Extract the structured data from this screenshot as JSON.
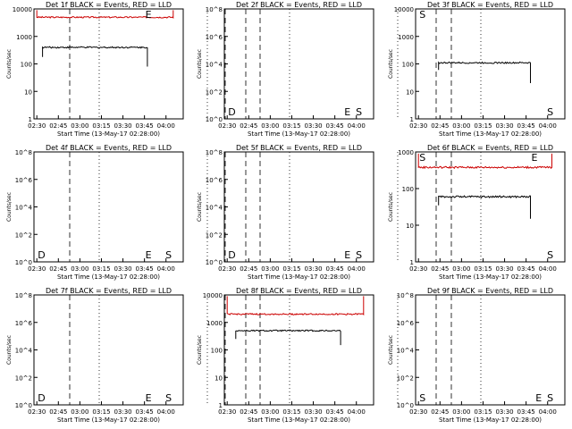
{
  "chart_data": [
    {
      "type": "line",
      "title": "Det 1f BLACK = Events, RED = LLD",
      "xlabel": "Start Time (13-May-17 02:28:00)",
      "ylabel": "Counts/sec",
      "y_scale": "log",
      "ylim": [
        1,
        10000
      ],
      "y_ticks": [
        "1",
        "10",
        "100",
        "1000",
        "10000"
      ],
      "x_ticks": [
        "02:30",
        "02:45",
        "03:00",
        "03:15",
        "03:30",
        "03:45",
        "04:00"
      ],
      "markers": [
        {
          "label": "E",
          "time": "03:45"
        }
      ],
      "series": [
        {
          "name": "LLD",
          "color": "#cc0000",
          "x_start": "02:30",
          "x_end": "04:05",
          "level": 5000,
          "edges": [
            9000,
            9000
          ]
        },
        {
          "name": "Events",
          "color": "#000000",
          "x_start": "02:34",
          "x_end": "03:47",
          "level": 400,
          "edges": [
            180,
            80
          ]
        }
      ]
    },
    {
      "type": "line",
      "title": "Det 2f BLACK = Events, RED = LLD",
      "xlabel": "Start Time (13-May-17 02:28:00)",
      "ylabel": "Counts/sec",
      "y_scale": "log",
      "ylim": [
        1,
        100000000
      ],
      "y_ticks": [
        "10^0",
        "10^2",
        "10^4",
        "10^6",
        "10^8"
      ],
      "x_ticks": [
        "02:30",
        "02:45",
        "03:00",
        "03:15",
        "03:30",
        "03:45",
        "04:00"
      ],
      "markers": [
        {
          "label": "D",
          "time": "02:30"
        },
        {
          "label": "E",
          "time": "03:51"
        },
        {
          "label": "S",
          "time": "03:59"
        }
      ],
      "series": []
    },
    {
      "type": "line",
      "title": "Det 3f BLACK = Events, RED = LLD",
      "xlabel": "Start Time (13-May-17 02:28:00)",
      "ylabel": "Counts/sec",
      "y_scale": "log",
      "ylim": [
        1,
        10000
      ],
      "y_ticks": [
        "1",
        "10",
        "100",
        "1000",
        "10000"
      ],
      "x_ticks": [
        "02:30",
        "02:45",
        "03:00",
        "03:15",
        "03:30",
        "03:45",
        "04:00"
      ],
      "markers": [
        {
          "label": "S",
          "time": "02:30"
        },
        {
          "label": "S",
          "time": "03:59"
        }
      ],
      "series": [
        {
          "name": "Events",
          "color": "#000000",
          "x_start": "02:44",
          "x_end": "03:48",
          "level": 110,
          "edges": [
            60,
            20
          ]
        }
      ]
    },
    {
      "type": "line",
      "title": "Det 4f BLACK = Events, RED = LLD",
      "xlabel": "Start Time (13-May-17 02:28:00)",
      "ylabel": "Counts/sec",
      "y_scale": "log",
      "ylim": [
        1,
        100000000
      ],
      "y_ticks": [
        "10^0",
        "10^2",
        "10^4",
        "10^6",
        "10^8"
      ],
      "x_ticks": [
        "02:30",
        "02:45",
        "03:00",
        "03:15",
        "03:30",
        "03:45",
        "04:00"
      ],
      "markers": [
        {
          "label": "D",
          "time": "02:30"
        },
        {
          "label": "E",
          "time": "03:45"
        },
        {
          "label": "S",
          "time": "03:59"
        }
      ],
      "series": []
    },
    {
      "type": "line",
      "title": "Det 5f BLACK = Events, RED = LLD",
      "xlabel": "Start Time (13-May-17 02:28:00)",
      "ylabel": "Counts/sec",
      "y_scale": "log",
      "ylim": [
        1,
        100000000
      ],
      "y_ticks": [
        "10^0",
        "10^2",
        "10^4",
        "10^6",
        "10^8"
      ],
      "x_ticks": [
        "02:30",
        "02:45",
        "03:00",
        "03:15",
        "03:30",
        "03:45",
        "04:00"
      ],
      "markers": [
        {
          "label": "D",
          "time": "02:30"
        },
        {
          "label": "E",
          "time": "03:51"
        },
        {
          "label": "S",
          "time": "03:59"
        }
      ],
      "series": []
    },
    {
      "type": "line",
      "title": "Det 6f BLACK = Events, RED = LLD",
      "xlabel": "Start Time (13-May-17 02:28:00)",
      "ylabel": "Counts/sec",
      "y_scale": "log",
      "ylim": [
        1,
        1000
      ],
      "y_ticks": [
        "1",
        "10",
        "100",
        "1000"
      ],
      "x_ticks": [
        "02:30",
        "02:45",
        "03:00",
        "03:15",
        "03:30",
        "03:45",
        "04:00"
      ],
      "markers": [
        {
          "label": "S",
          "time": "02:30"
        },
        {
          "label": "E",
          "time": "03:48"
        },
        {
          "label": "S",
          "time": "03:59"
        }
      ],
      "series": [
        {
          "name": "LLD",
          "color": "#cc0000",
          "x_start": "02:30",
          "x_end": "04:03",
          "level": 380,
          "edges": [
            900,
            900
          ]
        },
        {
          "name": "Events",
          "color": "#000000",
          "x_start": "02:44",
          "x_end": "03:48",
          "level": 60,
          "edges": [
            35,
            15
          ]
        }
      ]
    },
    {
      "type": "line",
      "title": "Det 7f BLACK = Events, RED = LLD",
      "xlabel": "Start Time (13-May-17 02:28:00)",
      "ylabel": "Counts/sec",
      "y_scale": "log",
      "ylim": [
        1,
        100000000
      ],
      "y_ticks": [
        "10^0",
        "10^2",
        "10^4",
        "10^6",
        "10^8"
      ],
      "x_ticks": [
        "02:30",
        "02:45",
        "03:00",
        "03:15",
        "03:30",
        "03:45",
        "04:00"
      ],
      "markers": [
        {
          "label": "D",
          "time": "02:30"
        },
        {
          "label": "E",
          "time": "03:45"
        },
        {
          "label": "S",
          "time": "03:59"
        }
      ],
      "series": []
    },
    {
      "type": "line",
      "title": "Det 8f BLACK = Events, RED = LLD",
      "xlabel": "Start Time (13-May-17 02:28:00)",
      "ylabel": "Counts/sec",
      "y_scale": "log",
      "ylim": [
        1,
        10000
      ],
      "y_ticks": [
        "1",
        "10",
        "100",
        "1000",
        "10000"
      ],
      "x_ticks": [
        "02:30",
        "02:45",
        "03:00",
        "03:15",
        "03:30",
        "03:45",
        "04:00"
      ],
      "markers": [],
      "series": [
        {
          "name": "LLD",
          "color": "#cc0000",
          "x_start": "02:30",
          "x_end": "04:05",
          "level": 2000,
          "edges": [
            9000,
            9000
          ]
        },
        {
          "name": "Events",
          "color": "#000000",
          "x_start": "02:36",
          "x_end": "03:49",
          "level": 500,
          "edges": [
            250,
            150
          ]
        }
      ]
    },
    {
      "type": "line",
      "title": "Det 9f BLACK = Events, RED = LLD",
      "xlabel": "Start Time (13-May-17 02:28:00)",
      "ylabel": "Counts/sec",
      "y_scale": "log",
      "ylim": [
        1,
        100000000
      ],
      "y_ticks": [
        "10^0",
        "10^2",
        "10^4",
        "10^6",
        "10^8"
      ],
      "x_ticks": [
        "02:30",
        "02:45",
        "03:00",
        "03:15",
        "03:30",
        "03:45",
        "04:00"
      ],
      "markers": [
        {
          "label": "S",
          "time": "02:30"
        },
        {
          "label": "E",
          "time": "03:51"
        },
        {
          "label": "S",
          "time": "03:59"
        }
      ],
      "series": []
    }
  ]
}
